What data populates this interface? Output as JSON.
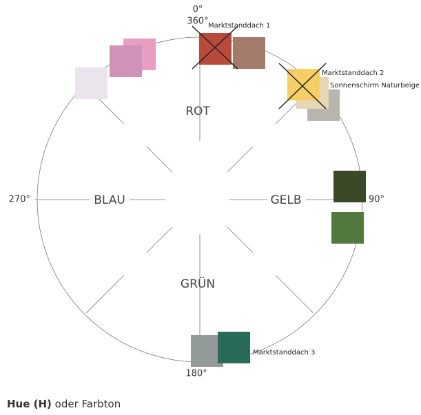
{
  "angles": {
    "top_0": "0°",
    "top_360": "360°",
    "right": "90°",
    "bottom": "180°",
    "left": "270°"
  },
  "hues": {
    "top": "ROT",
    "right": "GELB",
    "bottom": "GRÜN",
    "left": "BLAU"
  },
  "swatch_labels": [
    "Marktstanddach 1",
    "Marktstanddach 2",
    "Sonnenschirm Naturbeige",
    "Marktstanddach 3"
  ],
  "caption": {
    "bold": "Hue (H)",
    "rest": " oder Farbton"
  }
}
